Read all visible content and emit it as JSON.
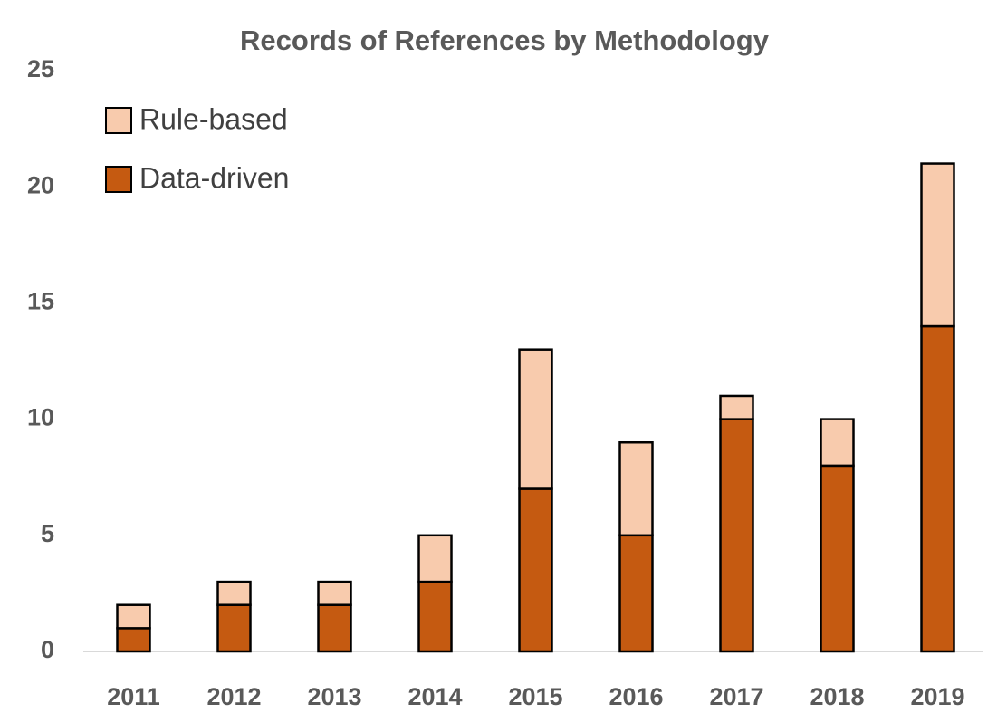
{
  "chart_data": {
    "type": "stacked_bar",
    "title": "Records of References by Methodology",
    "categories": [
      "2011",
      "2012",
      "2013",
      "2014",
      "2015",
      "2016",
      "2017",
      "2018",
      "2019"
    ],
    "series": [
      {
        "name": "Data-driven",
        "color": "#c55a11",
        "values": [
          1,
          2,
          2,
          3,
          7,
          5,
          10,
          8,
          14
        ]
      },
      {
        "name": "Rule-based",
        "color": "#f8cbad",
        "values": [
          1,
          1,
          1,
          2,
          6,
          4,
          1,
          2,
          7
        ]
      }
    ],
    "ylim": [
      0,
      25
    ],
    "yticks": [
      0,
      5,
      10,
      15,
      20,
      25
    ],
    "grid": false,
    "legend": "top-left"
  }
}
